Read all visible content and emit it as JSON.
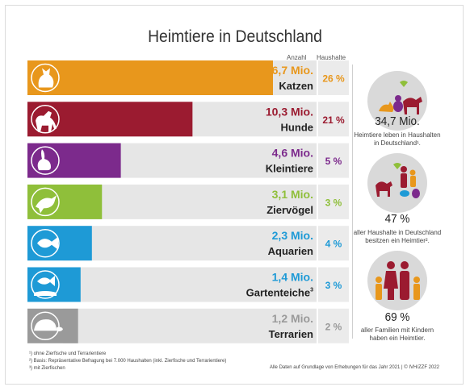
{
  "title": "Heimtiere in Deutschland",
  "headers": {
    "anzahl": "Anzahl",
    "haushalte": "Haushalte"
  },
  "chart_data": {
    "type": "bar",
    "orientation": "horizontal",
    "title": "Heimtiere in Deutschland",
    "value_unit": "Mio.",
    "xlim": [
      0,
      16.7
    ],
    "categories": [
      "Katzen",
      "Hunde",
      "Kleintiere",
      "Ziervögel",
      "Aquarien",
      "Gartenteiche",
      "Terrarien"
    ],
    "category_markers": [
      "",
      "",
      "",
      "",
      "",
      "3",
      ""
    ],
    "values": [
      16.7,
      10.3,
      4.6,
      3.1,
      2.3,
      1.4,
      1.2
    ],
    "value_labels": [
      "16,7 Mio.",
      "10,3 Mio.",
      "4,6 Mio.",
      "3,1 Mio.",
      "2,3 Mio.",
      "1,4 Mio.",
      "1,2 Mio."
    ],
    "households": [
      "26 %",
      "21 %",
      "5 %",
      "3 %",
      "4 %",
      "3 %",
      "2 %"
    ],
    "colors": [
      "#e8971c",
      "#9b1b30",
      "#7c2a8c",
      "#8fbf3a",
      "#1e9ad6",
      "#1e9ad6",
      "#9a9a9a"
    ],
    "icons": [
      "cat-icon",
      "dog-icon",
      "rabbit-icon",
      "bird-icon",
      "fish-icon",
      "pond-fish-icon",
      "turtle-icon"
    ]
  },
  "side": [
    {
      "value": "34,7 Mio.",
      "text1": "Heimtiere leben in Haushalten",
      "text2": "in Deutschland¹.",
      "icon": "pets-group-icon"
    },
    {
      "value": "47 %",
      "text1": "aller Haushalte in Deutschland",
      "text2": "besitzen ein Heimtier².",
      "icon": "family-pets-icon"
    },
    {
      "value": "69 %",
      "text1": "aller Familien mit Kindern",
      "text2": "haben ein Heimtier.",
      "icon": "family-icon"
    }
  ],
  "footnotes": [
    "¹) ohne Zierfische und Terrarientiere",
    "²) Basis: Repräsentative Befragung bei 7.000 Haushalten (inkl. Zierfische und Terrarientiere)",
    "³) mit Zierfischen"
  ],
  "source": "Alle Daten auf Grundlage von Erhebungen für das Jahr 2021 | © IVH/ZZF 2022"
}
